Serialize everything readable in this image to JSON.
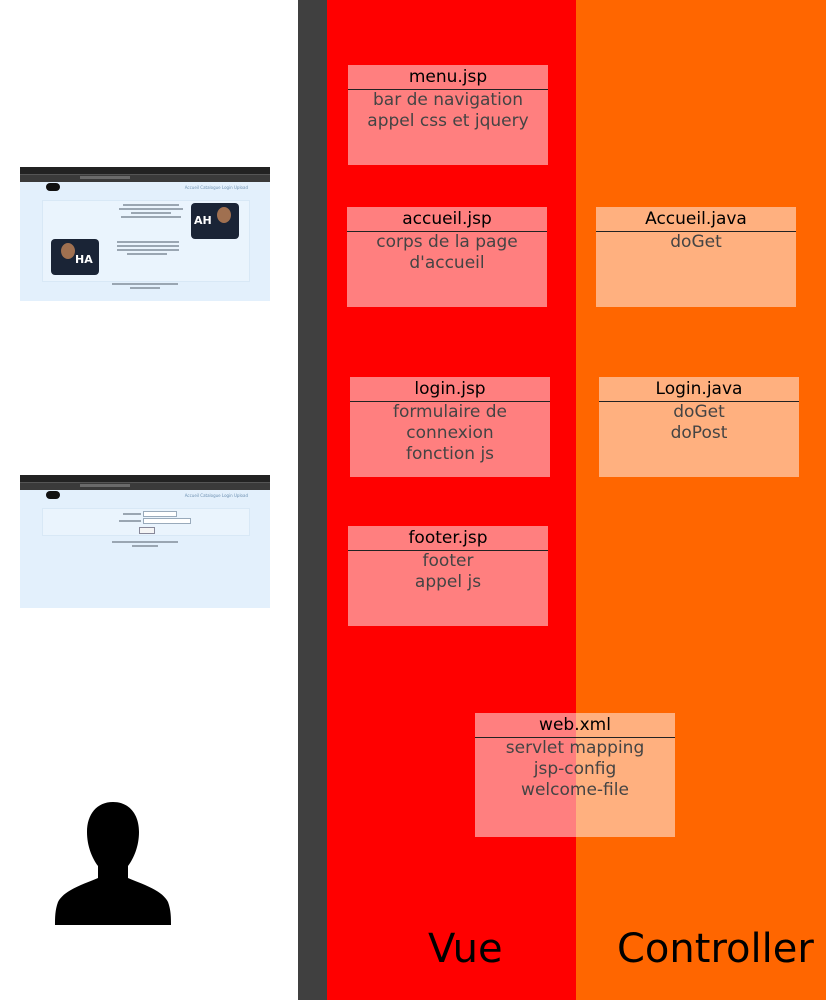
{
  "columns": {
    "vue_title": "Vue",
    "controller_title": "Controller",
    "colors": {
      "gray": "#404040",
      "vue": "#ff0000",
      "controller": "#ff6600"
    }
  },
  "vue_boxes": [
    {
      "title": "menu.jsp",
      "lines": [
        "bar de navigation",
        "appel css et jquery"
      ]
    },
    {
      "title": "accueil.jsp",
      "lines": [
        "corps de la page",
        "d'accueil"
      ]
    },
    {
      "title": "login.jsp",
      "lines": [
        "formulaire de",
        "connexion",
        "fonction js"
      ]
    },
    {
      "title": "footer.jsp",
      "lines": [
        "footer",
        "appel js"
      ]
    }
  ],
  "controller_boxes": [
    {
      "title": "Accueil.java",
      "lines": [
        "doGet"
      ]
    },
    {
      "title": "Login.java",
      "lines": [
        "doGet",
        "doPost"
      ]
    }
  ],
  "shared_box": {
    "title": "web.xml",
    "lines": [
      "servlet mapping",
      "jsp-config",
      "welcome-file"
    ]
  },
  "screenshots": [
    {
      "kind": "home-page",
      "nav": "Accueil  Catalogue  Login  Upload",
      "photo_words": [
        "AH",
        "HA"
      ]
    },
    {
      "kind": "login-page",
      "nav": "Accueil  Catalogue  Login  Upload"
    }
  ],
  "icons": {
    "user": "user-silhouette-icon"
  }
}
